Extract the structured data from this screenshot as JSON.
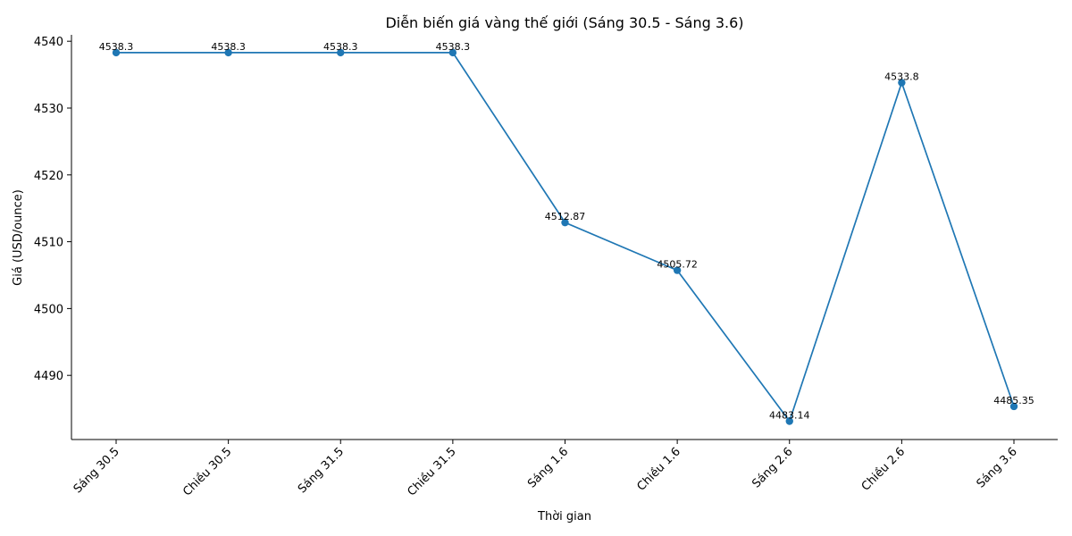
{
  "chart_data": {
    "type": "line",
    "title": "Diễn biến giá vàng thế giới (Sáng 30.5 - Sáng 3.6)",
    "xlabel": "Thời gian",
    "ylabel": "Giá (USD/ounce)",
    "categories": [
      "Sáng 30.5",
      "Chiều 30.5",
      "Sáng 31.5",
      "Chiều 31.5",
      "Sáng 1.6",
      "Chiều 1.6",
      "Sáng 2.6",
      "Chiều 2.6",
      "Sáng 3.6"
    ],
    "values": [
      4538.3,
      4538.3,
      4538.3,
      4538.3,
      4512.87,
      4505.72,
      4483.14,
      4533.8,
      4485.35
    ],
    "data_labels": [
      "4538.3",
      "4538.3",
      "4538.3",
      "4538.3",
      "4512.87",
      "4505.72",
      "4483.14",
      "4533.8",
      "4485.35"
    ],
    "yticks": [
      4490,
      4500,
      4510,
      4520,
      4530,
      4540
    ],
    "ylim": [
      4480.4,
      4540.96
    ],
    "grid": false,
    "line_color": "#1f77b4"
  }
}
